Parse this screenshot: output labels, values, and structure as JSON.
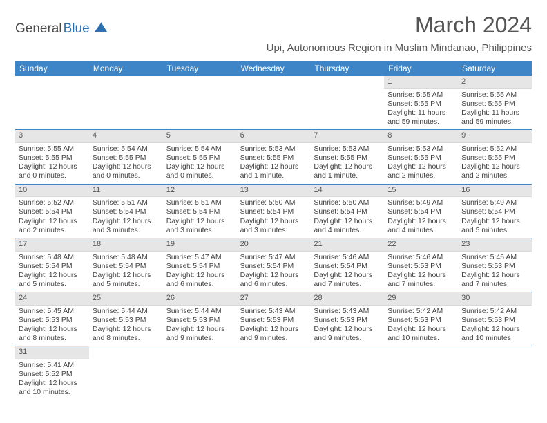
{
  "logo": {
    "part1": "General",
    "part2": "Blue"
  },
  "title": "March 2024",
  "location": "Upi, Autonomous Region in Muslim Mindanao, Philippines",
  "colors": {
    "header_bg": "#3d85c6",
    "header_text": "#ffffff",
    "daynum_bg": "#e6e6e6",
    "border": "#3d85c6",
    "body_text": "#444444",
    "title_text": "#555555",
    "logo_blue": "#2b6fb0"
  },
  "day_names": [
    "Sunday",
    "Monday",
    "Tuesday",
    "Wednesday",
    "Thursday",
    "Friday",
    "Saturday"
  ],
  "weeks": [
    [
      {
        "n": "",
        "sr": "",
        "ss": "",
        "dl": ""
      },
      {
        "n": "",
        "sr": "",
        "ss": "",
        "dl": ""
      },
      {
        "n": "",
        "sr": "",
        "ss": "",
        "dl": ""
      },
      {
        "n": "",
        "sr": "",
        "ss": "",
        "dl": ""
      },
      {
        "n": "",
        "sr": "",
        "ss": "",
        "dl": ""
      },
      {
        "n": "1",
        "sr": "Sunrise: 5:55 AM",
        "ss": "Sunset: 5:55 PM",
        "dl": "Daylight: 11 hours and 59 minutes."
      },
      {
        "n": "2",
        "sr": "Sunrise: 5:55 AM",
        "ss": "Sunset: 5:55 PM",
        "dl": "Daylight: 11 hours and 59 minutes."
      }
    ],
    [
      {
        "n": "3",
        "sr": "Sunrise: 5:55 AM",
        "ss": "Sunset: 5:55 PM",
        "dl": "Daylight: 12 hours and 0 minutes."
      },
      {
        "n": "4",
        "sr": "Sunrise: 5:54 AM",
        "ss": "Sunset: 5:55 PM",
        "dl": "Daylight: 12 hours and 0 minutes."
      },
      {
        "n": "5",
        "sr": "Sunrise: 5:54 AM",
        "ss": "Sunset: 5:55 PM",
        "dl": "Daylight: 12 hours and 0 minutes."
      },
      {
        "n": "6",
        "sr": "Sunrise: 5:53 AM",
        "ss": "Sunset: 5:55 PM",
        "dl": "Daylight: 12 hours and 1 minute."
      },
      {
        "n": "7",
        "sr": "Sunrise: 5:53 AM",
        "ss": "Sunset: 5:55 PM",
        "dl": "Daylight: 12 hours and 1 minute."
      },
      {
        "n": "8",
        "sr": "Sunrise: 5:53 AM",
        "ss": "Sunset: 5:55 PM",
        "dl": "Daylight: 12 hours and 2 minutes."
      },
      {
        "n": "9",
        "sr": "Sunrise: 5:52 AM",
        "ss": "Sunset: 5:55 PM",
        "dl": "Daylight: 12 hours and 2 minutes."
      }
    ],
    [
      {
        "n": "10",
        "sr": "Sunrise: 5:52 AM",
        "ss": "Sunset: 5:54 PM",
        "dl": "Daylight: 12 hours and 2 minutes."
      },
      {
        "n": "11",
        "sr": "Sunrise: 5:51 AM",
        "ss": "Sunset: 5:54 PM",
        "dl": "Daylight: 12 hours and 3 minutes."
      },
      {
        "n": "12",
        "sr": "Sunrise: 5:51 AM",
        "ss": "Sunset: 5:54 PM",
        "dl": "Daylight: 12 hours and 3 minutes."
      },
      {
        "n": "13",
        "sr": "Sunrise: 5:50 AM",
        "ss": "Sunset: 5:54 PM",
        "dl": "Daylight: 12 hours and 3 minutes."
      },
      {
        "n": "14",
        "sr": "Sunrise: 5:50 AM",
        "ss": "Sunset: 5:54 PM",
        "dl": "Daylight: 12 hours and 4 minutes."
      },
      {
        "n": "15",
        "sr": "Sunrise: 5:49 AM",
        "ss": "Sunset: 5:54 PM",
        "dl": "Daylight: 12 hours and 4 minutes."
      },
      {
        "n": "16",
        "sr": "Sunrise: 5:49 AM",
        "ss": "Sunset: 5:54 PM",
        "dl": "Daylight: 12 hours and 5 minutes."
      }
    ],
    [
      {
        "n": "17",
        "sr": "Sunrise: 5:48 AM",
        "ss": "Sunset: 5:54 PM",
        "dl": "Daylight: 12 hours and 5 minutes."
      },
      {
        "n": "18",
        "sr": "Sunrise: 5:48 AM",
        "ss": "Sunset: 5:54 PM",
        "dl": "Daylight: 12 hours and 5 minutes."
      },
      {
        "n": "19",
        "sr": "Sunrise: 5:47 AM",
        "ss": "Sunset: 5:54 PM",
        "dl": "Daylight: 12 hours and 6 minutes."
      },
      {
        "n": "20",
        "sr": "Sunrise: 5:47 AM",
        "ss": "Sunset: 5:54 PM",
        "dl": "Daylight: 12 hours and 6 minutes."
      },
      {
        "n": "21",
        "sr": "Sunrise: 5:46 AM",
        "ss": "Sunset: 5:54 PM",
        "dl": "Daylight: 12 hours and 7 minutes."
      },
      {
        "n": "22",
        "sr": "Sunrise: 5:46 AM",
        "ss": "Sunset: 5:53 PM",
        "dl": "Daylight: 12 hours and 7 minutes."
      },
      {
        "n": "23",
        "sr": "Sunrise: 5:45 AM",
        "ss": "Sunset: 5:53 PM",
        "dl": "Daylight: 12 hours and 7 minutes."
      }
    ],
    [
      {
        "n": "24",
        "sr": "Sunrise: 5:45 AM",
        "ss": "Sunset: 5:53 PM",
        "dl": "Daylight: 12 hours and 8 minutes."
      },
      {
        "n": "25",
        "sr": "Sunrise: 5:44 AM",
        "ss": "Sunset: 5:53 PM",
        "dl": "Daylight: 12 hours and 8 minutes."
      },
      {
        "n": "26",
        "sr": "Sunrise: 5:44 AM",
        "ss": "Sunset: 5:53 PM",
        "dl": "Daylight: 12 hours and 9 minutes."
      },
      {
        "n": "27",
        "sr": "Sunrise: 5:43 AM",
        "ss": "Sunset: 5:53 PM",
        "dl": "Daylight: 12 hours and 9 minutes."
      },
      {
        "n": "28",
        "sr": "Sunrise: 5:43 AM",
        "ss": "Sunset: 5:53 PM",
        "dl": "Daylight: 12 hours and 9 minutes."
      },
      {
        "n": "29",
        "sr": "Sunrise: 5:42 AM",
        "ss": "Sunset: 5:53 PM",
        "dl": "Daylight: 12 hours and 10 minutes."
      },
      {
        "n": "30",
        "sr": "Sunrise: 5:42 AM",
        "ss": "Sunset: 5:53 PM",
        "dl": "Daylight: 12 hours and 10 minutes."
      }
    ],
    [
      {
        "n": "31",
        "sr": "Sunrise: 5:41 AM",
        "ss": "Sunset: 5:52 PM",
        "dl": "Daylight: 12 hours and 10 minutes."
      },
      {
        "n": "",
        "sr": "",
        "ss": "",
        "dl": ""
      },
      {
        "n": "",
        "sr": "",
        "ss": "",
        "dl": ""
      },
      {
        "n": "",
        "sr": "",
        "ss": "",
        "dl": ""
      },
      {
        "n": "",
        "sr": "",
        "ss": "",
        "dl": ""
      },
      {
        "n": "",
        "sr": "",
        "ss": "",
        "dl": ""
      },
      {
        "n": "",
        "sr": "",
        "ss": "",
        "dl": ""
      }
    ]
  ]
}
